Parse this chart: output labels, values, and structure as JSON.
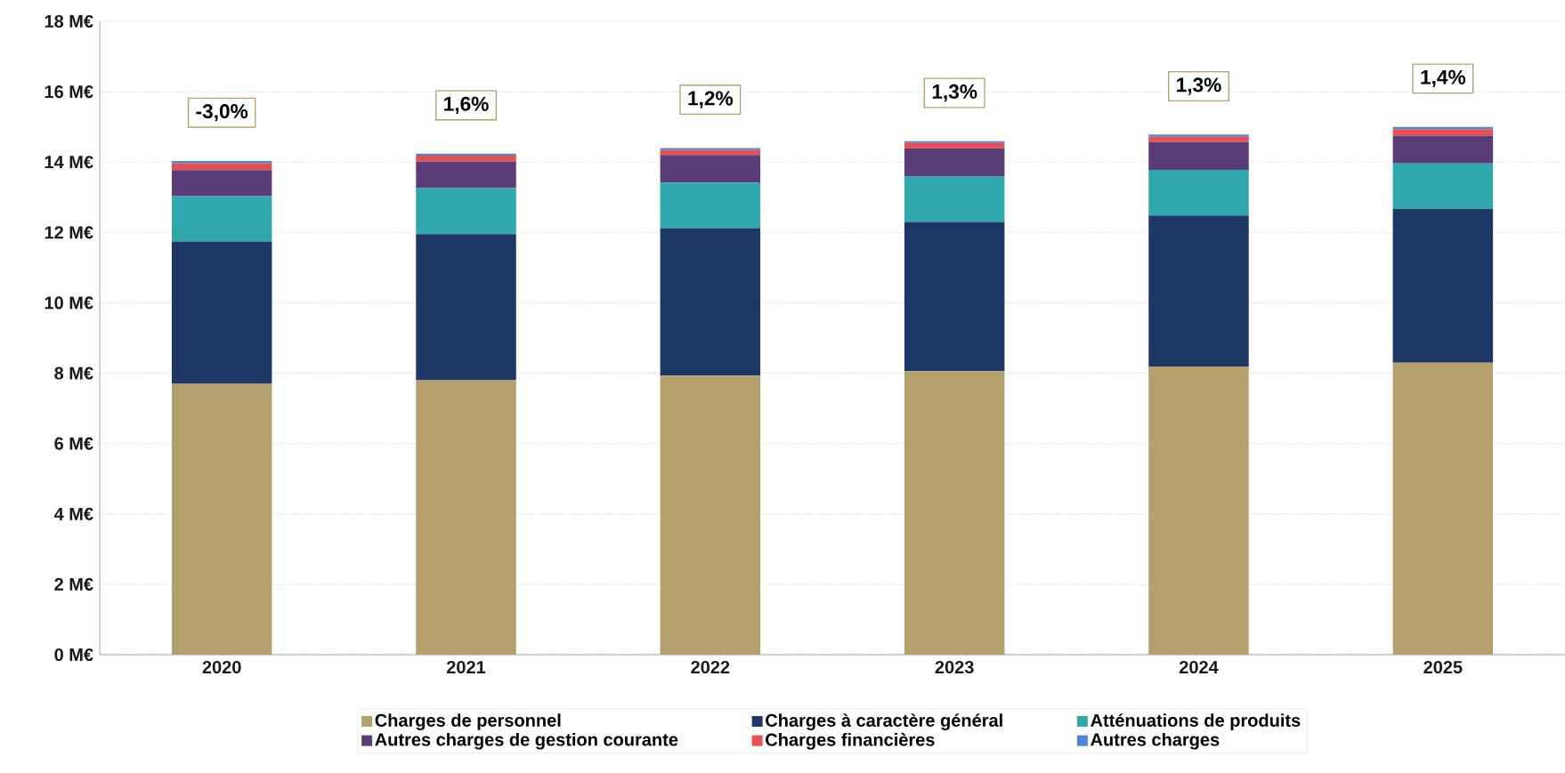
{
  "chart_data": {
    "type": "bar",
    "stacked": true,
    "categories": [
      "2020",
      "2021",
      "2022",
      "2023",
      "2024",
      "2025"
    ],
    "series": [
      {
        "name": "Charges de personnel",
        "color": "#b3a06c",
        "values": [
          7.7,
          7.8,
          7.93,
          8.06,
          8.19,
          8.3
        ]
      },
      {
        "name": "Charges à caractère général",
        "color": "#1d3864",
        "values": [
          4.04,
          4.15,
          4.19,
          4.24,
          4.29,
          4.37
        ]
      },
      {
        "name": "Atténuations de produits",
        "color": "#2fa8ad",
        "values": [
          1.29,
          1.31,
          1.3,
          1.29,
          1.3,
          1.29
        ]
      },
      {
        "name": "Autres charges de gestion courante",
        "color": "#5a3d78",
        "values": [
          0.74,
          0.75,
          0.78,
          0.8,
          0.79,
          0.79
        ]
      },
      {
        "name": "Charges financières",
        "color": "#e84f52",
        "values": [
          0.19,
          0.17,
          0.14,
          0.15,
          0.15,
          0.18
        ]
      },
      {
        "name": "Autres charges",
        "color": "#4f86d1",
        "values": [
          0.07,
          0.06,
          0.06,
          0.05,
          0.06,
          0.07
        ]
      }
    ],
    "ylim": [
      0,
      18
    ],
    "yticks": [
      {
        "value": 0,
        "label": "0 M€"
      },
      {
        "value": 2,
        "label": "2 M€"
      },
      {
        "value": 4,
        "label": "4 M€"
      },
      {
        "value": 6,
        "label": "6 M€"
      },
      {
        "value": 8,
        "label": "8 M€"
      },
      {
        "value": 10,
        "label": "10 M€"
      },
      {
        "value": 12,
        "label": "12 M€"
      },
      {
        "value": 14,
        "label": "14 M€"
      },
      {
        "value": 16,
        "label": "16 M€"
      },
      {
        "value": 18,
        "label": "18 M€"
      }
    ],
    "grid": "y",
    "legend": "bottom",
    "annotations": [
      "-3,0%",
      "1,6%",
      "1,2%",
      "1,3%",
      "1,3%",
      "1,4%"
    ]
  }
}
